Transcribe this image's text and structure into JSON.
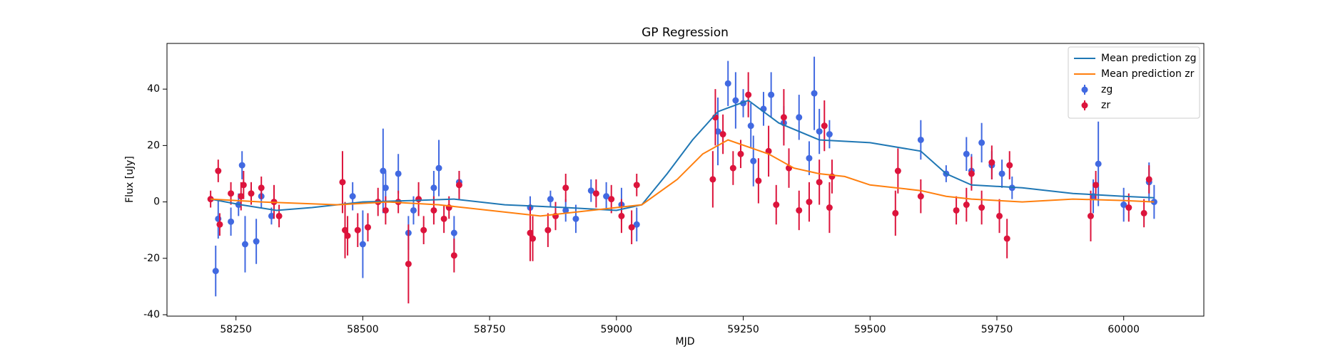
{
  "chart_data": {
    "type": "scatter",
    "title": "GP Regression",
    "x_label": "MJD",
    "y_label": "Flux [uJy]",
    "xlim": [
      58114,
      60158
    ],
    "ylim": [
      -40.5,
      56.2
    ],
    "xticks": [
      58250,
      58500,
      58750,
      59000,
      59250,
      59500,
      59750,
      60000
    ],
    "yticks": [
      -40,
      -20,
      0,
      20,
      40
    ],
    "legend": "upper right",
    "lines": [
      {
        "name": "Mean prediction zg",
        "color": "#1f77b4",
        "x": [
          58200,
          58260,
          58330,
          58400,
          58500,
          58600,
          58680,
          58780,
          58900,
          59000,
          59050,
          59100,
          59150,
          59200,
          59260,
          59320,
          59400,
          59500,
          59600,
          59650,
          59700,
          59800,
          59900,
          60000,
          60060
        ],
        "values": [
          1,
          -1,
          -3,
          -2,
          0,
          0.5,
          1,
          -1,
          -2,
          -3,
          -1,
          10,
          22,
          32,
          36,
          28,
          22,
          21,
          18,
          10,
          6,
          5,
          3,
          2,
          1.5
        ]
      },
      {
        "name": "Mean prediction zr",
        "color": "#ff7f0e",
        "x": [
          58200,
          58300,
          58450,
          58550,
          58650,
          58750,
          58850,
          58950,
          59050,
          59120,
          59170,
          59220,
          59300,
          59350,
          59400,
          59450,
          59500,
          59600,
          59650,
          59700,
          59800,
          59900,
          60000,
          60060
        ],
        "values": [
          1,
          0,
          -1,
          0,
          -1,
          -3,
          -5,
          -3,
          -1,
          8,
          17,
          22,
          17,
          12,
          10,
          9,
          6,
          4,
          2,
          1,
          0,
          1,
          0.5,
          0
        ]
      }
    ],
    "series": [
      {
        "name": "zg",
        "color": "#4169e1",
        "x": [
          58210,
          58215,
          58240,
          58255,
          58262,
          58268,
          58290,
          58300,
          58320,
          58480,
          58500,
          58540,
          58545,
          58570,
          58590,
          58600,
          58640,
          58650,
          58680,
          58690,
          58830,
          58870,
          58900,
          58920,
          58950,
          58980,
          59010,
          59040,
          59200,
          59220,
          59235,
          59250,
          59265,
          59270,
          59290,
          59305,
          59330,
          59360,
          59380,
          59390,
          59400,
          59420,
          59600,
          59650,
          59690,
          59700,
          59720,
          59740,
          59760,
          59780,
          59940,
          59950,
          60000,
          60050,
          60060
        ],
        "values": [
          -24.5,
          -6,
          -7,
          -1,
          13,
          -15,
          -14,
          2,
          -5,
          2,
          -15,
          11,
          5,
          10,
          -11,
          -3,
          5,
          12,
          -11,
          7,
          -2,
          1,
          -3,
          -6,
          4,
          2,
          -1,
          -8,
          25,
          42,
          36,
          35,
          27,
          14.5,
          33,
          38,
          28,
          30,
          15.5,
          38.5,
          25,
          24,
          22,
          10,
          17,
          11,
          21,
          13,
          10,
          5,
          2,
          13.5,
          -1,
          7,
          0
        ],
        "errors": [
          9,
          7,
          5,
          4,
          5,
          10,
          8,
          4,
          3,
          5,
          12,
          15,
          6,
          7,
          6,
          5,
          6,
          10,
          6,
          4,
          4,
          3,
          4,
          5,
          4,
          5,
          6,
          6,
          12,
          8,
          10,
          5,
          8,
          9,
          6,
          8,
          6,
          8,
          6,
          13,
          8,
          5,
          7,
          3,
          6,
          6,
          7,
          5,
          5,
          4,
          6,
          15,
          6,
          7,
          6
        ]
      },
      {
        "name": "zr",
        "color": "#dc143c",
        "x": [
          58200,
          58215,
          58218,
          58240,
          58260,
          58265,
          58280,
          58300,
          58325,
          58335,
          58460,
          58465,
          58470,
          58490,
          58510,
          58530,
          58545,
          58570,
          58590,
          58610,
          58620,
          58640,
          58660,
          58670,
          58680,
          58690,
          58830,
          58835,
          58865,
          58880,
          58900,
          58960,
          58990,
          59010,
          59030,
          59040,
          59190,
          59195,
          59210,
          59230,
          59245,
          59260,
          59280,
          59300,
          59315,
          59330,
          59340,
          59360,
          59380,
          59400,
          59410,
          59420,
          59425,
          59550,
          59555,
          59600,
          59670,
          59690,
          59700,
          59720,
          59740,
          59755,
          59770,
          59775,
          59935,
          59945,
          60010,
          60040,
          60050
        ],
        "values": [
          1,
          11,
          -8,
          3,
          2,
          6,
          3,
          5,
          0,
          -5,
          7,
          -10,
          -12,
          -10,
          -9,
          0,
          -3,
          0,
          -22,
          1,
          -10,
          -3,
          -6,
          -2,
          -19,
          6,
          -11,
          -13,
          -10,
          -5,
          5,
          3,
          1,
          -5,
          -9,
          6,
          8,
          30,
          24,
          12,
          17,
          38,
          7.5,
          18,
          -1,
          30,
          12,
          -3,
          0,
          7,
          27,
          -2,
          9,
          -4,
          11,
          2,
          -3,
          -1,
          10,
          -2,
          14,
          -5,
          -13,
          13,
          -5,
          6,
          -2,
          -4,
          8
        ],
        "errors": [
          3,
          4,
          4,
          4,
          5,
          5,
          4,
          4,
          6,
          4,
          11,
          10,
          7,
          6,
          5,
          5,
          5,
          4,
          14,
          6,
          5,
          5,
          5,
          4,
          6,
          5,
          10,
          8,
          6,
          5,
          5,
          5,
          5,
          6,
          6,
          4,
          10,
          10,
          7,
          6,
          5,
          8,
          8,
          9,
          7,
          10,
          7,
          7,
          7,
          8,
          9,
          9,
          6,
          8,
          8,
          6,
          5,
          6,
          6,
          6,
          6,
          6,
          7,
          5,
          9,
          5,
          5,
          5,
          5
        ]
      }
    ]
  }
}
